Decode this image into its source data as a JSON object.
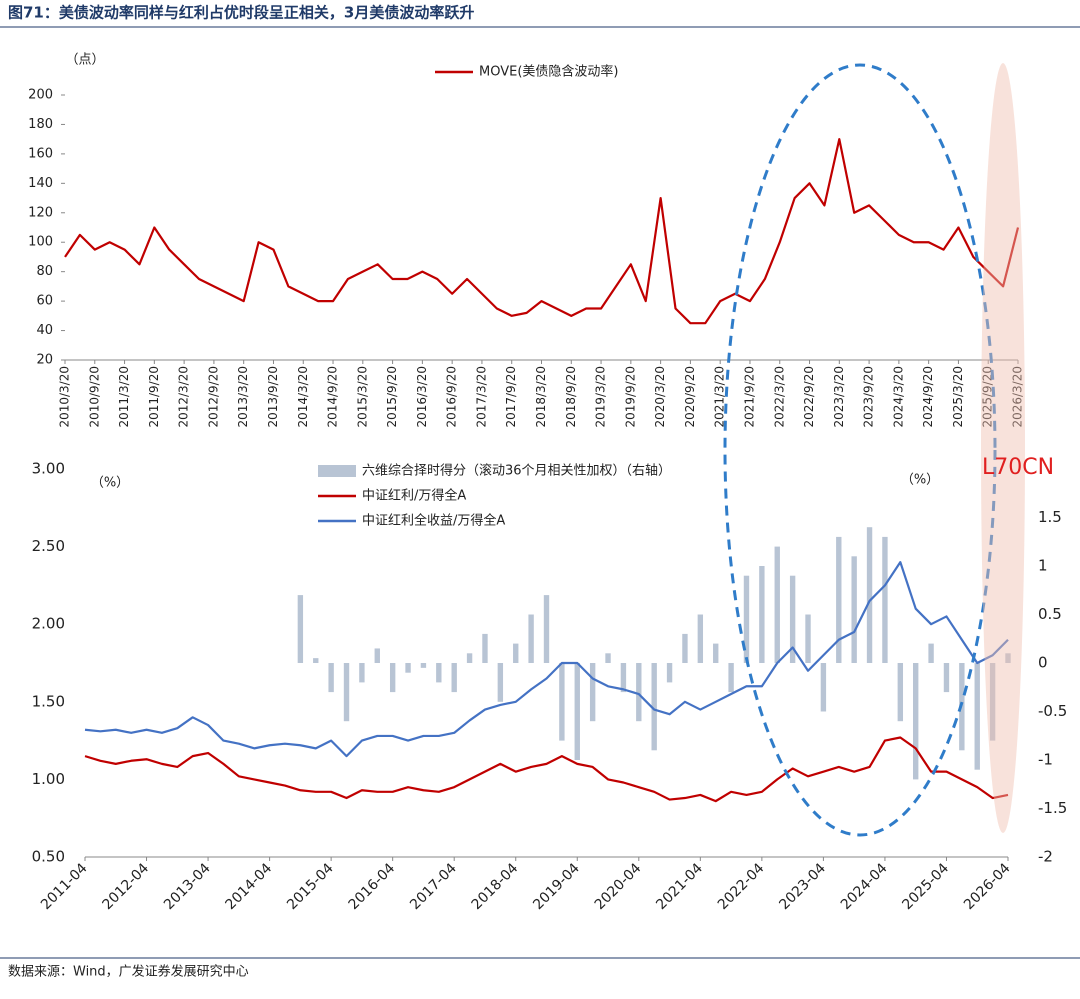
{
  "title": "图71：美债波动率同样与红利占优时段呈正相关，3月美债波动率跃升",
  "source": "数据来源：Wind，广发证券发展研究中心",
  "annotation": "L70CN",
  "chart_data": [
    {
      "type": "line",
      "y_unit": "（点）",
      "categories": [
        "2010/3/20",
        null,
        "2010/9/20",
        null,
        "2011/3/20",
        null,
        "2011/9/20",
        null,
        "2012/3/20",
        null,
        "2012/9/20",
        null,
        "2013/3/20",
        null,
        "2013/9/20",
        null,
        "2014/3/20",
        null,
        "2014/9/20",
        null,
        "2015/3/20",
        null,
        "2015/9/20",
        null,
        "2016/3/20",
        null,
        "2016/9/20",
        null,
        "2017/3/20",
        null,
        "2017/9/20",
        null,
        "2018/3/20",
        null,
        "2018/9/20",
        null,
        "2019/3/20",
        null,
        "2019/9/20",
        null,
        "2020/3/20",
        null,
        "2020/9/20",
        null,
        "2021/3/20",
        null,
        "2021/9/20",
        null,
        "2022/3/20",
        null,
        "2022/9/20",
        null,
        "2023/3/20",
        null,
        "2023/9/20",
        null,
        "2024/3/20",
        null,
        "2024/9/20",
        null,
        "2025/3/20",
        null,
        "2025/9/20",
        null,
        "2026/3/20"
      ],
      "series": [
        {
          "name": "MOVE(美债隐含波动率)",
          "color": "#c00000",
          "values": [
            90,
            105,
            95,
            100,
            95,
            85,
            110,
            95,
            85,
            75,
            70,
            65,
            60,
            100,
            95,
            70,
            65,
            60,
            60,
            75,
            80,
            85,
            75,
            75,
            80,
            75,
            65,
            75,
            65,
            55,
            50,
            52,
            60,
            55,
            50,
            55,
            55,
            70,
            85,
            60,
            130,
            55,
            45,
            45,
            60,
            65,
            60,
            75,
            100,
            130,
            140,
            125,
            170,
            120,
            125,
            115,
            105,
            100,
            100,
            95,
            110,
            90,
            80,
            70,
            110
          ]
        }
      ],
      "ylim": [
        20,
        200
      ],
      "yticks": [
        20,
        40,
        60,
        80,
        100,
        120,
        140,
        160,
        180,
        200
      ]
    },
    {
      "type": "bar",
      "y_unit": "（%）",
      "y2_unit": "（%）",
      "categories": [
        "2011-04",
        null,
        null,
        null,
        "2012-04",
        null,
        null,
        null,
        "2013-04",
        null,
        null,
        null,
        "2014-04",
        null,
        null,
        null,
        "2015-04",
        null,
        null,
        null,
        "2016-04",
        null,
        null,
        null,
        "2017-04",
        null,
        null,
        null,
        "2018-04",
        null,
        null,
        null,
        "2019-04",
        null,
        null,
        null,
        "2020-04",
        null,
        null,
        null,
        "2021-04",
        null,
        null,
        null,
        "2022-04",
        null,
        null,
        null,
        "2023-04",
        null,
        null,
        null,
        "2024-04",
        null,
        null,
        null,
        "2025-04",
        null,
        null,
        null,
        "2026-04"
      ],
      "series": [
        {
          "name": "六维综合择时得分（滚动36个月相关性加权）（右轴）",
          "type": "bar",
          "axis": "y2",
          "color": "#b8c4d4",
          "values": [
            null,
            null,
            null,
            null,
            null,
            null,
            null,
            null,
            null,
            null,
            null,
            null,
            null,
            null,
            0.7,
            0.05,
            -0.3,
            -0.6,
            -0.2,
            0.15,
            -0.3,
            -0.1,
            -0.05,
            -0.2,
            -0.3,
            0.1,
            0.3,
            -0.4,
            0.2,
            0.5,
            0.7,
            -0.8,
            -1.0,
            -0.6,
            0.1,
            -0.3,
            -0.6,
            -0.9,
            -0.2,
            0.3,
            0.5,
            0.2,
            -0.3,
            0.9,
            1.0,
            1.2,
            0.9,
            0.5,
            -0.5,
            1.3,
            1.1,
            1.4,
            1.3,
            -0.6,
            -1.2,
            0.2,
            -0.3,
            -0.9,
            -1.1,
            -0.8,
            0.1
          ]
        },
        {
          "name": "中证红利/万得全A",
          "type": "line",
          "color": "#c00000",
          "values": [
            1.15,
            1.12,
            1.1,
            1.12,
            1.13,
            1.1,
            1.08,
            1.15,
            1.17,
            1.1,
            1.02,
            1.0,
            0.98,
            0.96,
            0.93,
            0.92,
            0.92,
            0.88,
            0.93,
            0.92,
            0.92,
            0.95,
            0.93,
            0.92,
            0.95,
            1.0,
            1.05,
            1.1,
            1.05,
            1.08,
            1.1,
            1.15,
            1.1,
            1.08,
            1.0,
            0.98,
            0.95,
            0.92,
            0.87,
            0.88,
            0.9,
            0.86,
            0.92,
            0.9,
            0.92,
            1.0,
            1.07,
            1.02,
            1.05,
            1.08,
            1.05,
            1.08,
            1.25,
            1.27,
            1.2,
            1.05,
            1.05,
            1.0,
            0.95,
            0.88,
            0.9
          ]
        },
        {
          "name": "中证红利全收益/万得全A",
          "type": "line",
          "color": "#4472c4",
          "values": [
            1.32,
            1.31,
            1.32,
            1.3,
            1.32,
            1.3,
            1.33,
            1.4,
            1.35,
            1.25,
            1.23,
            1.2,
            1.22,
            1.23,
            1.22,
            1.2,
            1.25,
            1.15,
            1.25,
            1.28,
            1.28,
            1.25,
            1.28,
            1.28,
            1.3,
            1.38,
            1.45,
            1.48,
            1.5,
            1.58,
            1.65,
            1.75,
            1.75,
            1.65,
            1.6,
            1.58,
            1.55,
            1.45,
            1.42,
            1.5,
            1.45,
            1.5,
            1.55,
            1.6,
            1.6,
            1.75,
            1.85,
            1.7,
            1.8,
            1.9,
            1.95,
            2.15,
            2.25,
            2.4,
            2.1,
            2.0,
            2.05,
            1.9,
            1.75,
            1.8,
            1.9
          ]
        }
      ],
      "ylim": [
        0.5,
        3.0
      ],
      "yticks": [
        {
          "value": 0.5,
          "label": "0.50"
        },
        {
          "value": 1.0,
          "label": "1.00"
        },
        {
          "value": 1.5,
          "label": "1.50"
        },
        {
          "value": 2.0,
          "label": "2.00"
        },
        {
          "value": 2.5,
          "label": "2.50"
        },
        {
          "value": 3.0,
          "label": "3.00"
        }
      ],
      "y2lim": [
        -2,
        2
      ],
      "y2ticks": [
        -2,
        -1.5,
        -1,
        -0.5,
        0,
        0.5,
        1,
        1.5
      ]
    }
  ]
}
